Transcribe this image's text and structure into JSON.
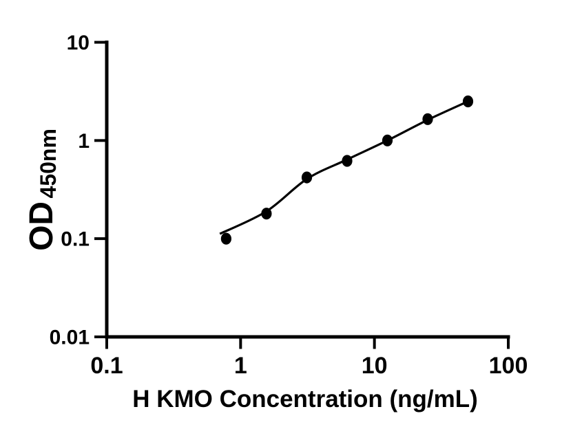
{
  "figure": {
    "background_color": "#ffffff",
    "foreground_color": "#000000"
  },
  "chart_data": {
    "type": "scatter",
    "title": "",
    "xlabel": "H KMO Concentration (ng/mL)",
    "ylabel": "OD",
    "ylabel_subscript": "450nm",
    "x_scale": "log",
    "y_scale": "log",
    "xlim": [
      0.1,
      100
    ],
    "ylim": [
      0.01,
      10
    ],
    "x_ticks": [
      0.1,
      1,
      10,
      100
    ],
    "x_tick_labels": [
      "0.1",
      "1",
      "10",
      "100"
    ],
    "y_ticks": [
      0.01,
      0.1,
      1,
      10
    ],
    "y_tick_labels": [
      "0.01",
      "0.1",
      "1",
      "10"
    ],
    "grid": false,
    "legend": false,
    "series": [
      {
        "name": "standard-points",
        "marker": "filled-circle",
        "color": "#000000",
        "x": [
          0.78,
          1.56,
          3.125,
          6.25,
          12.5,
          25,
          50
        ],
        "y": [
          0.1,
          0.18,
          0.42,
          0.62,
          1.0,
          1.65,
          2.5
        ]
      }
    ],
    "fit_curve": {
      "name": "fitted-standard-curve",
      "color": "#000000",
      "x": [
        0.7,
        1.56,
        3.125,
        6.25,
        12.5,
        25,
        50
      ],
      "y": [
        0.112,
        0.19,
        0.405,
        0.64,
        1.0,
        1.62,
        2.5
      ]
    }
  }
}
